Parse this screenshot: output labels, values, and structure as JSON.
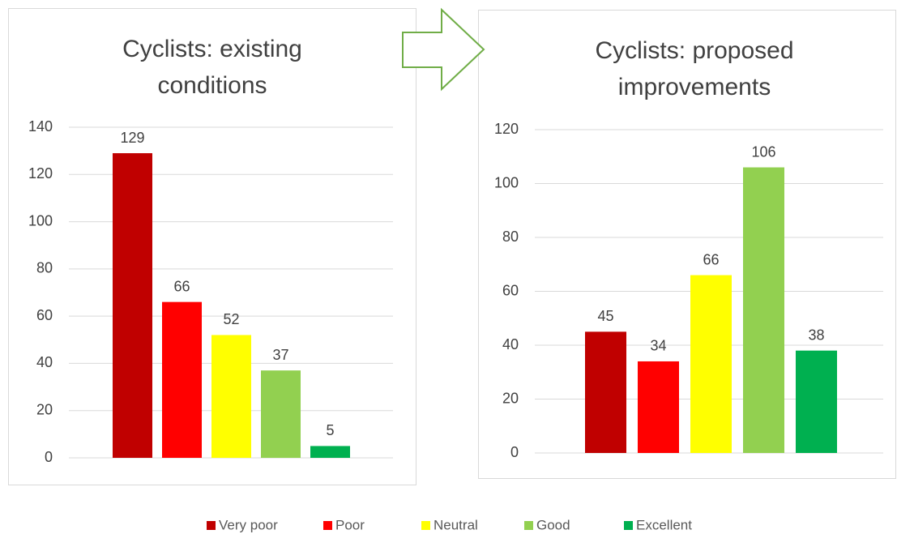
{
  "legend": [
    {
      "name": "Very poor",
      "color": "#c00000"
    },
    {
      "name": "Poor",
      "color": "#ff0000"
    },
    {
      "name": "Neutral",
      "color": "#ffff00"
    },
    {
      "name": "Good",
      "color": "#92d050"
    },
    {
      "name": "Excellent",
      "color": "#00b050"
    }
  ],
  "chart_data": [
    {
      "type": "bar",
      "title": "Cyclists: existing conditions",
      "values": [
        129,
        66,
        52,
        37,
        5
      ],
      "ylim": [
        0,
        140
      ],
      "yticks": [
        0,
        20,
        40,
        60,
        80,
        100,
        120,
        140
      ],
      "grid": true
    },
    {
      "type": "bar",
      "title": "Cyclists: proposed improvements",
      "values": [
        45,
        34,
        66,
        106,
        38
      ],
      "ylim": [
        0,
        120
      ],
      "yticks": [
        0,
        20,
        40,
        60,
        80,
        100,
        120
      ],
      "grid": true
    }
  ]
}
